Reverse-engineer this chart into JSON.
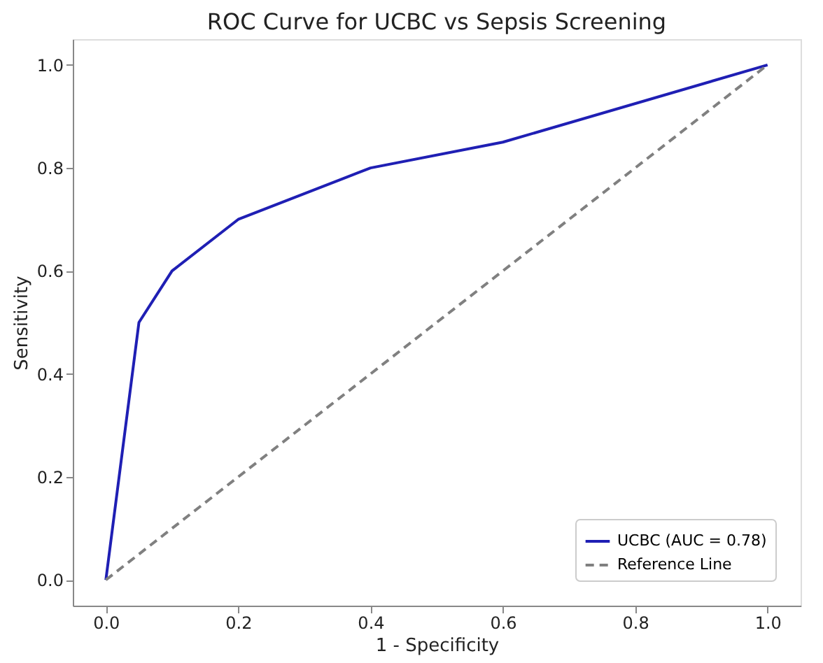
{
  "chart_data": {
    "type": "line",
    "title": "ROC Curve for UCBC vs Sepsis Screening",
    "xlabel": "1 - Specificity",
    "ylabel": "Sensitivity",
    "series": [
      {
        "name": "UCBC (AUC = 0.78)",
        "color": "#1f1fb4",
        "x": [
          0,
          0.05,
          0.1,
          0.2,
          0.4,
          0.6,
          1.0
        ],
        "values": [
          0,
          0.5,
          0.6,
          0.7,
          0.8,
          0.85,
          1.0
        ],
        "line_style": "solid"
      },
      {
        "name": "Reference Line",
        "color": "#808080",
        "x": [
          0,
          1
        ],
        "values": [
          0,
          1
        ],
        "line_style": "dashed"
      }
    ],
    "xlim": [
      -0.05,
      1.05
    ],
    "ylim": [
      -0.05,
      1.05
    ],
    "xticks": [
      {
        "value": 0,
        "label": "0.0"
      },
      0.2,
      0.4,
      0.6,
      0.8,
      {
        "value": 1,
        "label": "1.0"
      }
    ],
    "yticks": [
      {
        "value": 0,
        "label": "0.0"
      },
      0.2,
      0.4,
      0.6,
      0.8,
      {
        "value": 1,
        "label": "1.0"
      }
    ],
    "grid": false,
    "legend": "bottom right"
  }
}
